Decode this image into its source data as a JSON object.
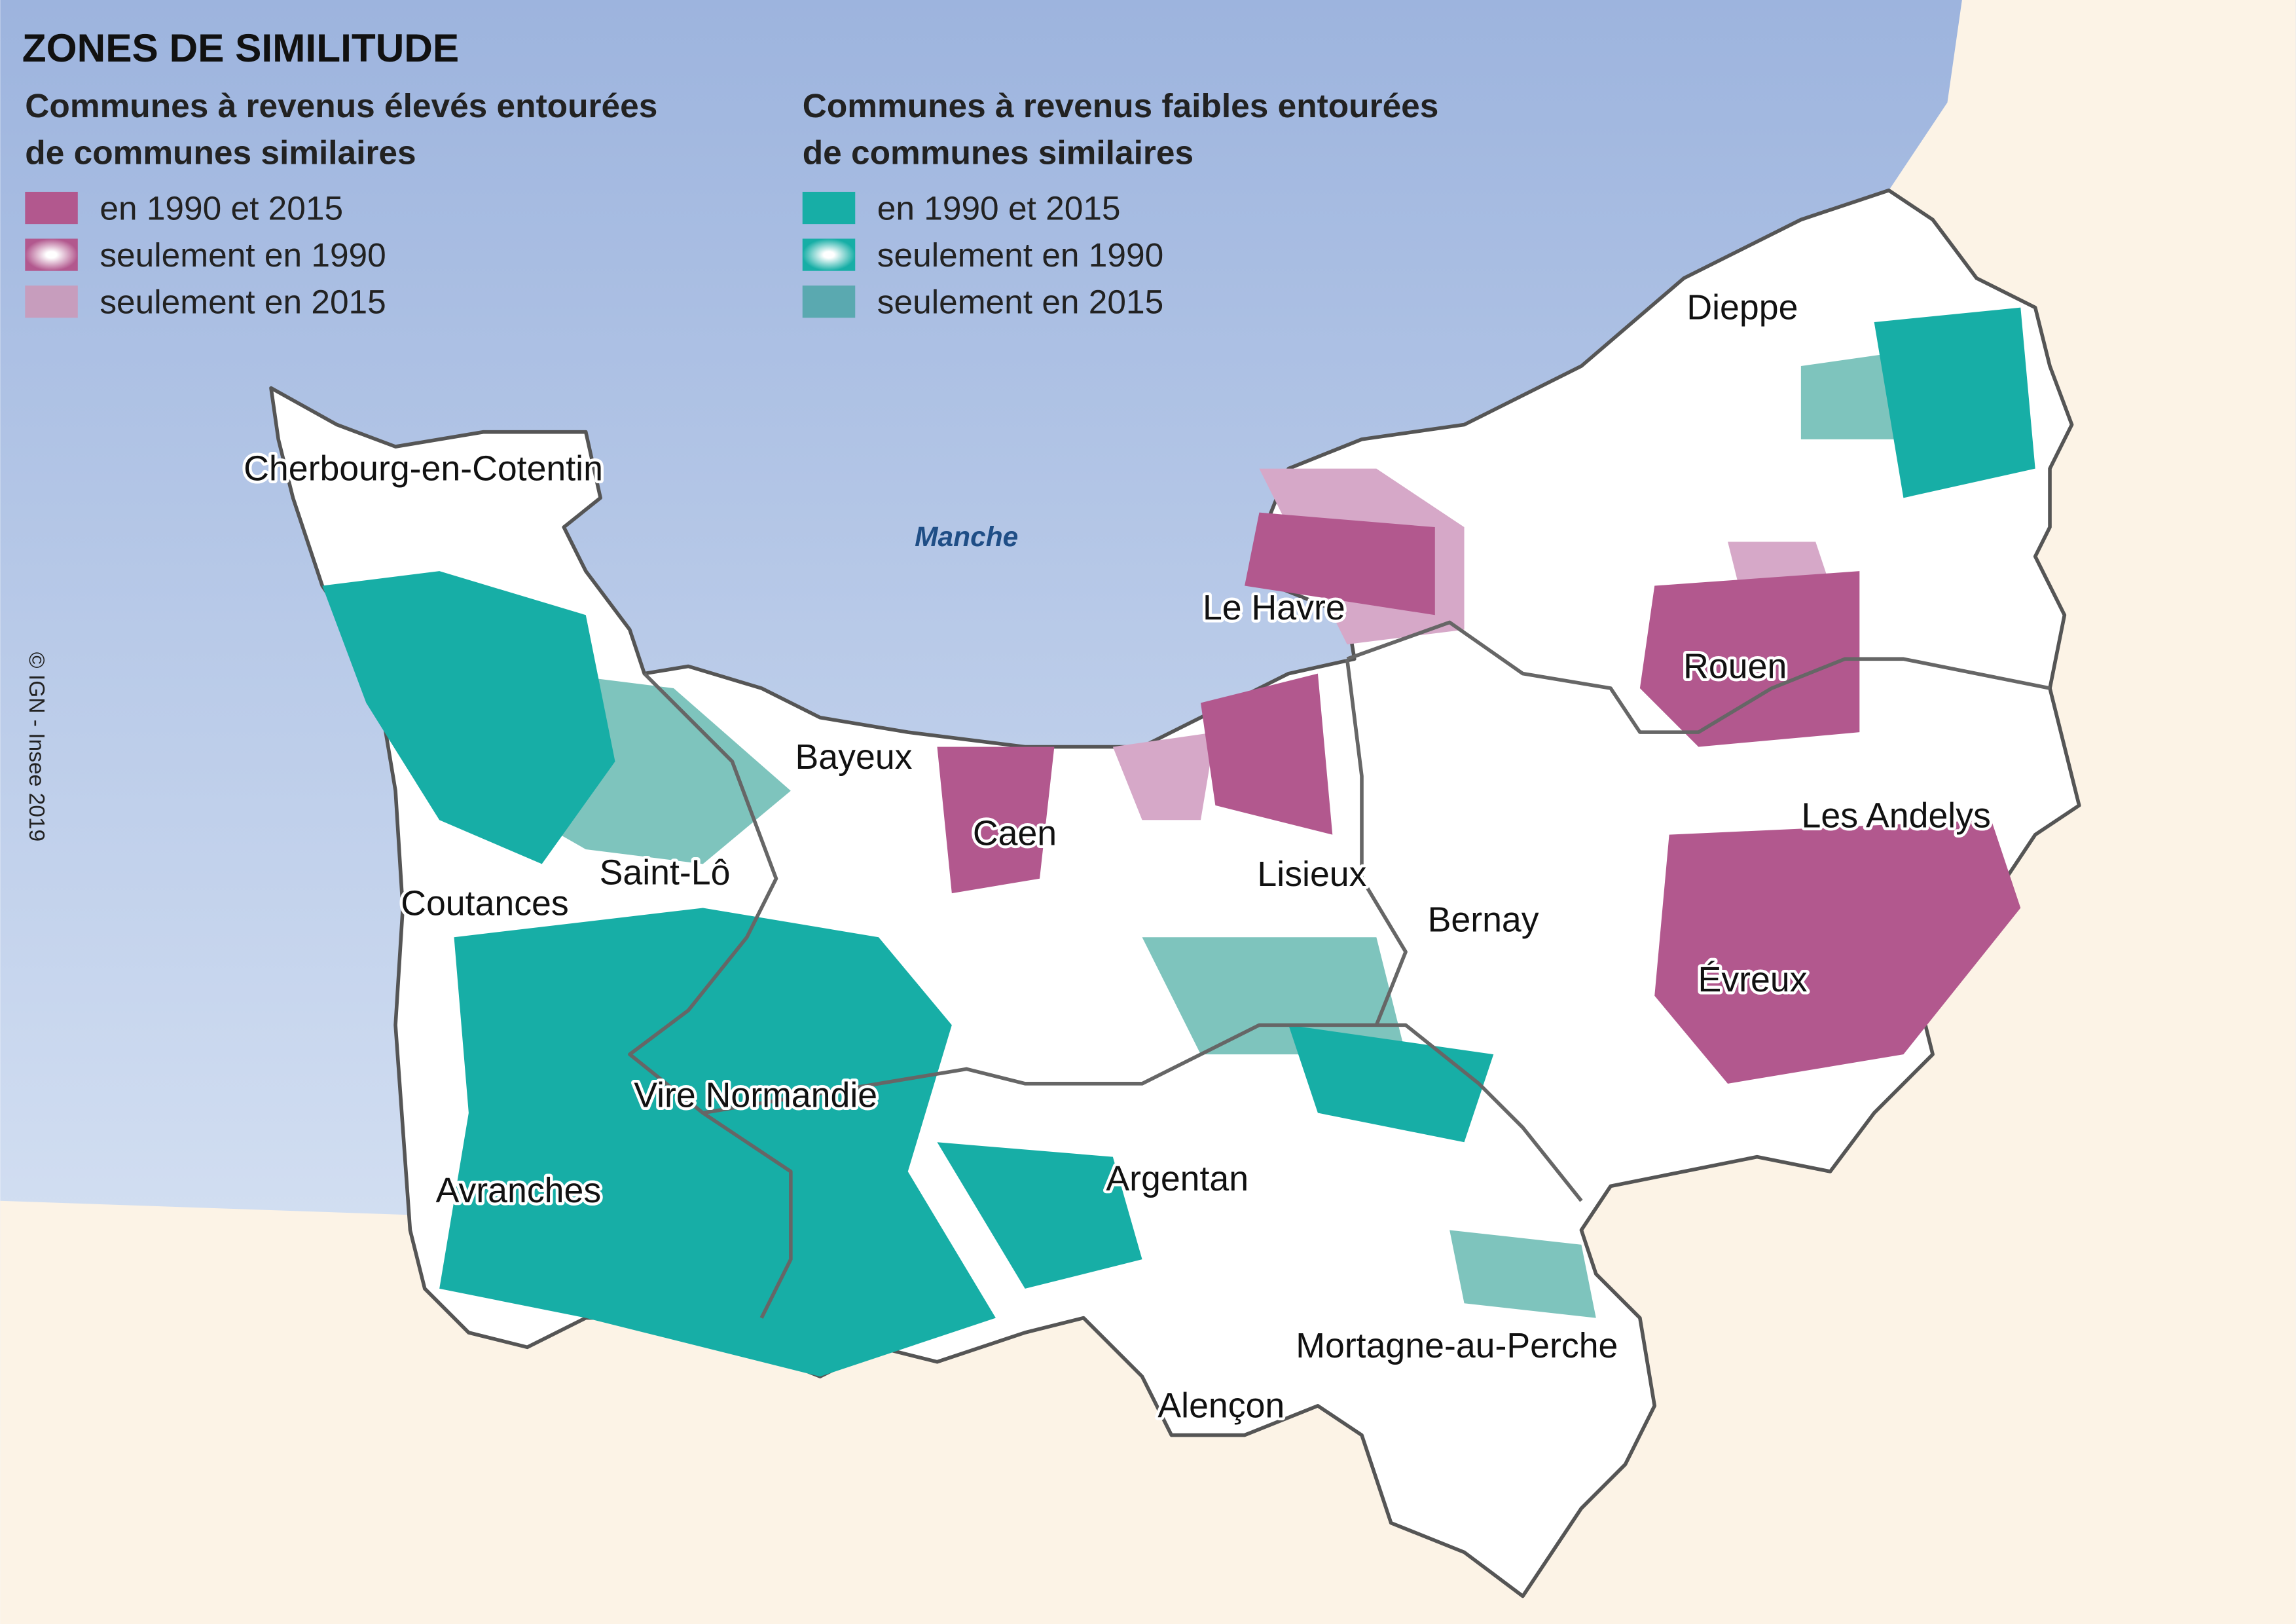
{
  "title": "ZONES DE SIMILITUDE",
  "legend": {
    "high": {
      "heading": [
        "Communes à revenus élevés entourées",
        "de communes similaires"
      ],
      "items": [
        "en 1990 et 2015",
        "seulement en 1990",
        "seulement en 2015"
      ]
    },
    "low": {
      "heading": [
        "Communes à revenus faibles entourées",
        "de communes similaires"
      ],
      "items": [
        "en 1990 et 2015",
        "seulement en 1990",
        "seulement en 2015"
      ]
    }
  },
  "sea": "Manche",
  "places": [
    "Cherbourg-en-Cotentin",
    "Le Havre",
    "Dieppe",
    "Rouen",
    "Bayeux",
    "Caen",
    "Lisieux",
    "Saint-Lô",
    "Coutances",
    "Bernay",
    "Les Andelys",
    "Évreux",
    "Vire Normandie",
    "Avranches",
    "Argentan",
    "Mortagne-au-Perche",
    "Alençon"
  ],
  "credit": "© IGN - Insee 2019"
}
